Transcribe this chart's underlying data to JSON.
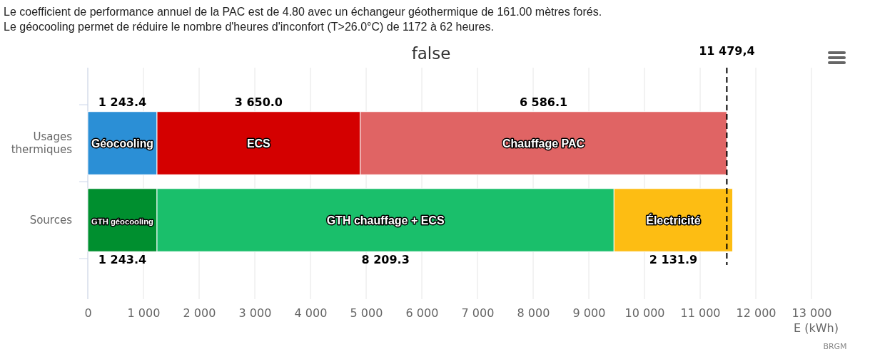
{
  "chart_data": {
    "type": "bar",
    "orientation": "horizontal",
    "stacked": true,
    "title": "false",
    "xlabel": "E (kWh)",
    "annotations": [
      "Le coefficient de performance annuel de la PAC est de 4.80 avec un échangeur géothermique de 161.00 mètres forés.",
      "Le géocooling permet de réduire le nombre d'heures d'inconfort (T>26.0°C) de 1172 à 62 heures.",
      "BRGM"
    ],
    "categories": [
      "Usages thermiques",
      "Sources"
    ],
    "series": [
      {
        "name": "Géocooling",
        "color": "#2b8fd6",
        "values": [
          1243.4,
          null
        ],
        "value_labels": [
          "1 243.4",
          null
        ]
      },
      {
        "name": "ECS",
        "color": "#d40000",
        "values": [
          3650.0,
          null
        ],
        "value_labels": [
          "3 650.0",
          null
        ]
      },
      {
        "name": "Chauffage PAC",
        "color": "#e06464",
        "values": [
          6586.1,
          null
        ],
        "value_labels": [
          "6 586.1",
          null
        ]
      },
      {
        "name": "GTH géocooling",
        "color": "#008f2f",
        "values": [
          null,
          1243.4
        ],
        "value_labels": [
          null,
          "1 243.4"
        ]
      },
      {
        "name": "GTH chauffage + ECS",
        "color": "#1abf6b",
        "values": [
          null,
          8209.3
        ],
        "value_labels": [
          null,
          "8 209.3"
        ]
      },
      {
        "name": "Électricité",
        "color": "#fdbd13",
        "values": [
          null,
          2131.9
        ],
        "value_labels": [
          null,
          "2 131.9"
        ]
      }
    ],
    "xlim": [
      0,
      13000
    ],
    "xticks": [
      0,
      {
        "value": 1000,
        "label": "1 000"
      },
      {
        "value": 2000,
        "label": "2 000"
      },
      {
        "value": 3000,
        "label": "3 000"
      },
      {
        "value": 4000,
        "label": "4 000"
      },
      {
        "value": 5000,
        "label": "5 000"
      },
      {
        "value": 6000,
        "label": "6 000"
      },
      {
        "value": 7000,
        "label": "7 000"
      },
      {
        "value": 8000,
        "label": "8 000"
      },
      {
        "value": 9000,
        "label": "9 000"
      },
      {
        "value": 10000,
        "label": "10 000"
      },
      {
        "value": 11000,
        "label": "11 000"
      },
      {
        "value": 12000,
        "label": "12 000"
      },
      {
        "value": 13000,
        "label": "13 000"
      }
    ],
    "ref_lines": [
      {
        "axis": "x",
        "value": 11479.4,
        "label": "11 479,4",
        "color": "#000000",
        "line_style": "dashed"
      }
    ],
    "grid": "x",
    "legend": false
  }
}
